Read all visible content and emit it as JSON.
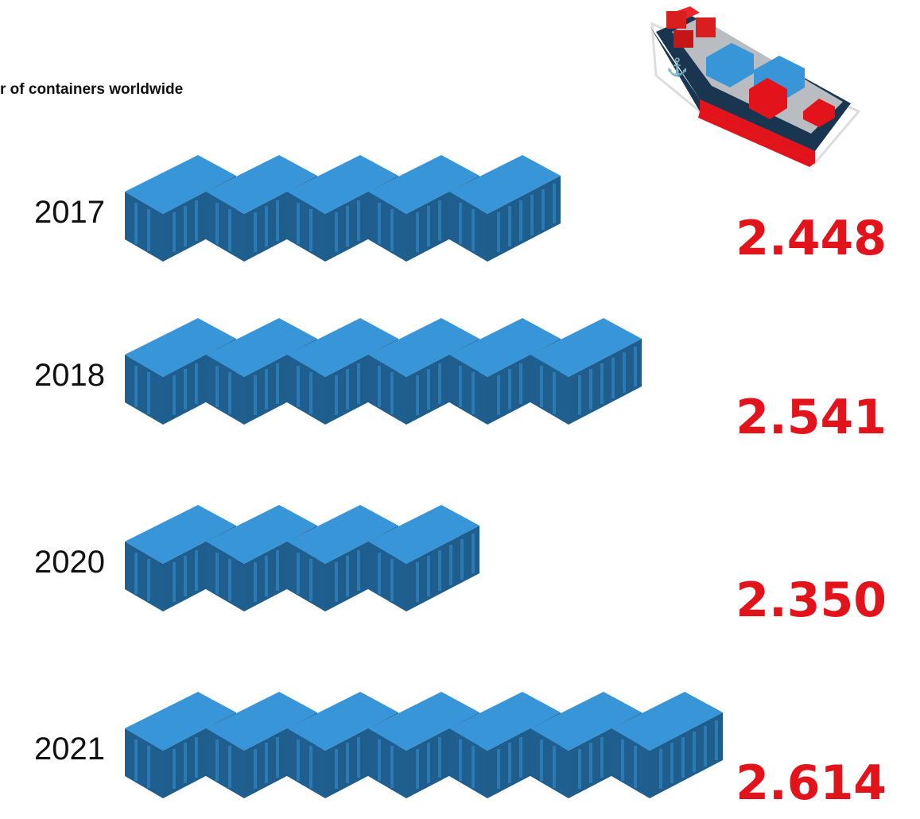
{
  "chart_data": {
    "type": "pictogram",
    "title": "r of containers worldwide",
    "categories": [
      "2017",
      "2018",
      "2020",
      "2021"
    ],
    "values": [
      2.448,
      2.541,
      2.35,
      2.614
    ],
    "value_labels": [
      "2.448",
      "2.541",
      "2.350",
      "2.614"
    ],
    "icons": [
      5,
      6,
      4,
      7
    ],
    "color": "#e3131b",
    "icon_color": "#3896d8"
  }
}
